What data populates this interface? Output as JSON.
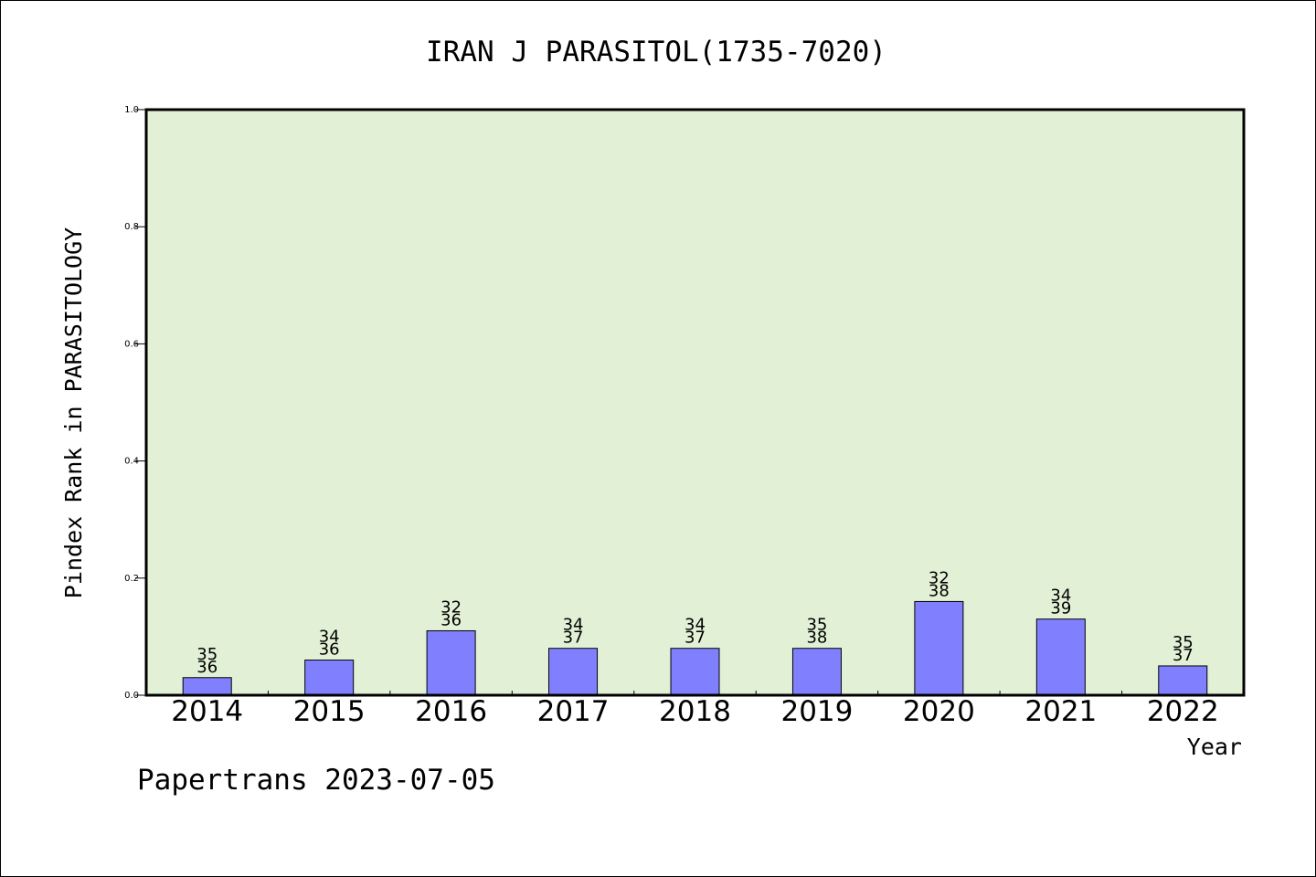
{
  "chart_data": {
    "type": "bar",
    "title": "IRAN J PARASITOL(1735-7020)",
    "ylabel": "Pindex Rank in PARASITOLOGY",
    "xlabel": "Year",
    "ylim": [
      0.0,
      1.0
    ],
    "yticks": [
      "0.0",
      "0.2",
      "0.4",
      "0.6",
      "0.8",
      "1.0"
    ],
    "categories": [
      "2014",
      "2015",
      "2016",
      "2017",
      "2018",
      "2019",
      "2020",
      "2021",
      "2022"
    ],
    "values": [
      0.03,
      0.06,
      0.11,
      0.08,
      0.08,
      0.08,
      0.16,
      0.13,
      0.05
    ],
    "rank": [
      "35",
      "34",
      "32",
      "34",
      "34",
      "35",
      "32",
      "34",
      "35"
    ],
    "total": [
      "36",
      "36",
      "36",
      "37",
      "37",
      "38",
      "38",
      "39",
      "37"
    ],
    "grid": false,
    "legend": "none",
    "colors": {
      "bar": "#8080ff",
      "plot_bg": "#e2f0d6",
      "axis": "#000000"
    }
  },
  "footer": "Papertrans 2023-07-05"
}
